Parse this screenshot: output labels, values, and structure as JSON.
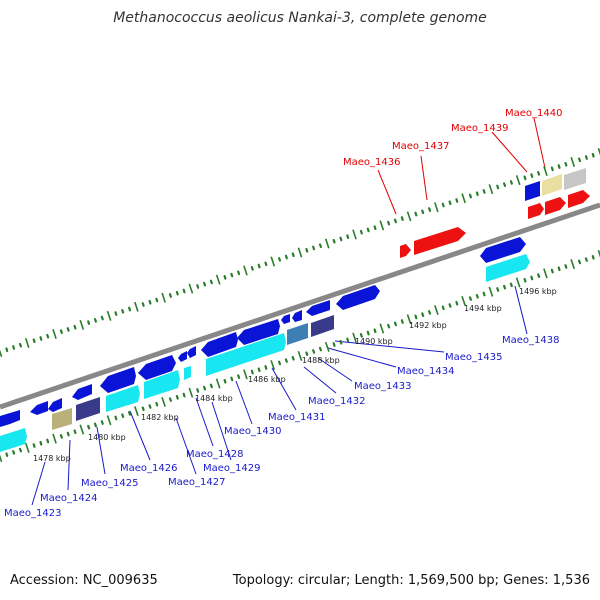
{
  "header": {
    "title": "Methanococcus aeolicus Nankai-3, complete genome"
  },
  "footer": {
    "accession": "Accession: NC_009635",
    "topology": "Topology: circular; Length: 1,569,500 bp; Genes: 1,536"
  },
  "colors": {
    "backbone": "#888888",
    "dots": "#2a7d2a",
    "forward_label": "#e00000",
    "reverse_label": "#1a1acc",
    "blue": "#0a14d6",
    "cyan": "#18e6f0",
    "red": "#ee1111",
    "navy": "#3a3a8a",
    "khaki": "#b9b07a",
    "steel": "#3d7fb5",
    "beige": "#eadfa0",
    "gray": "#c6c6c6"
  },
  "ticks": [
    "1478 kbp",
    "1480 kbp",
    "1482 kbp",
    "1484 kbp",
    "1486 kbp",
    "1488 kbp",
    "1490 kbp",
    "1492 kbp",
    "1494 kbp",
    "1496 kbp"
  ],
  "labels_red": [
    "Maeo_1436",
    "Maeo_1437",
    "Maeo_1439",
    "Maeo_1440"
  ],
  "labels_blue": [
    "Maeo_1423",
    "Maeo_1424",
    "Maeo_1425",
    "Maeo_1426",
    "Maeo_1427",
    "Maeo_1428",
    "Maeo_1429",
    "Maeo_1430",
    "Maeo_1431",
    "Maeo_1432",
    "Maeo_1433",
    "Maeo_1434",
    "Maeo_1435",
    "Maeo_1438"
  ]
}
